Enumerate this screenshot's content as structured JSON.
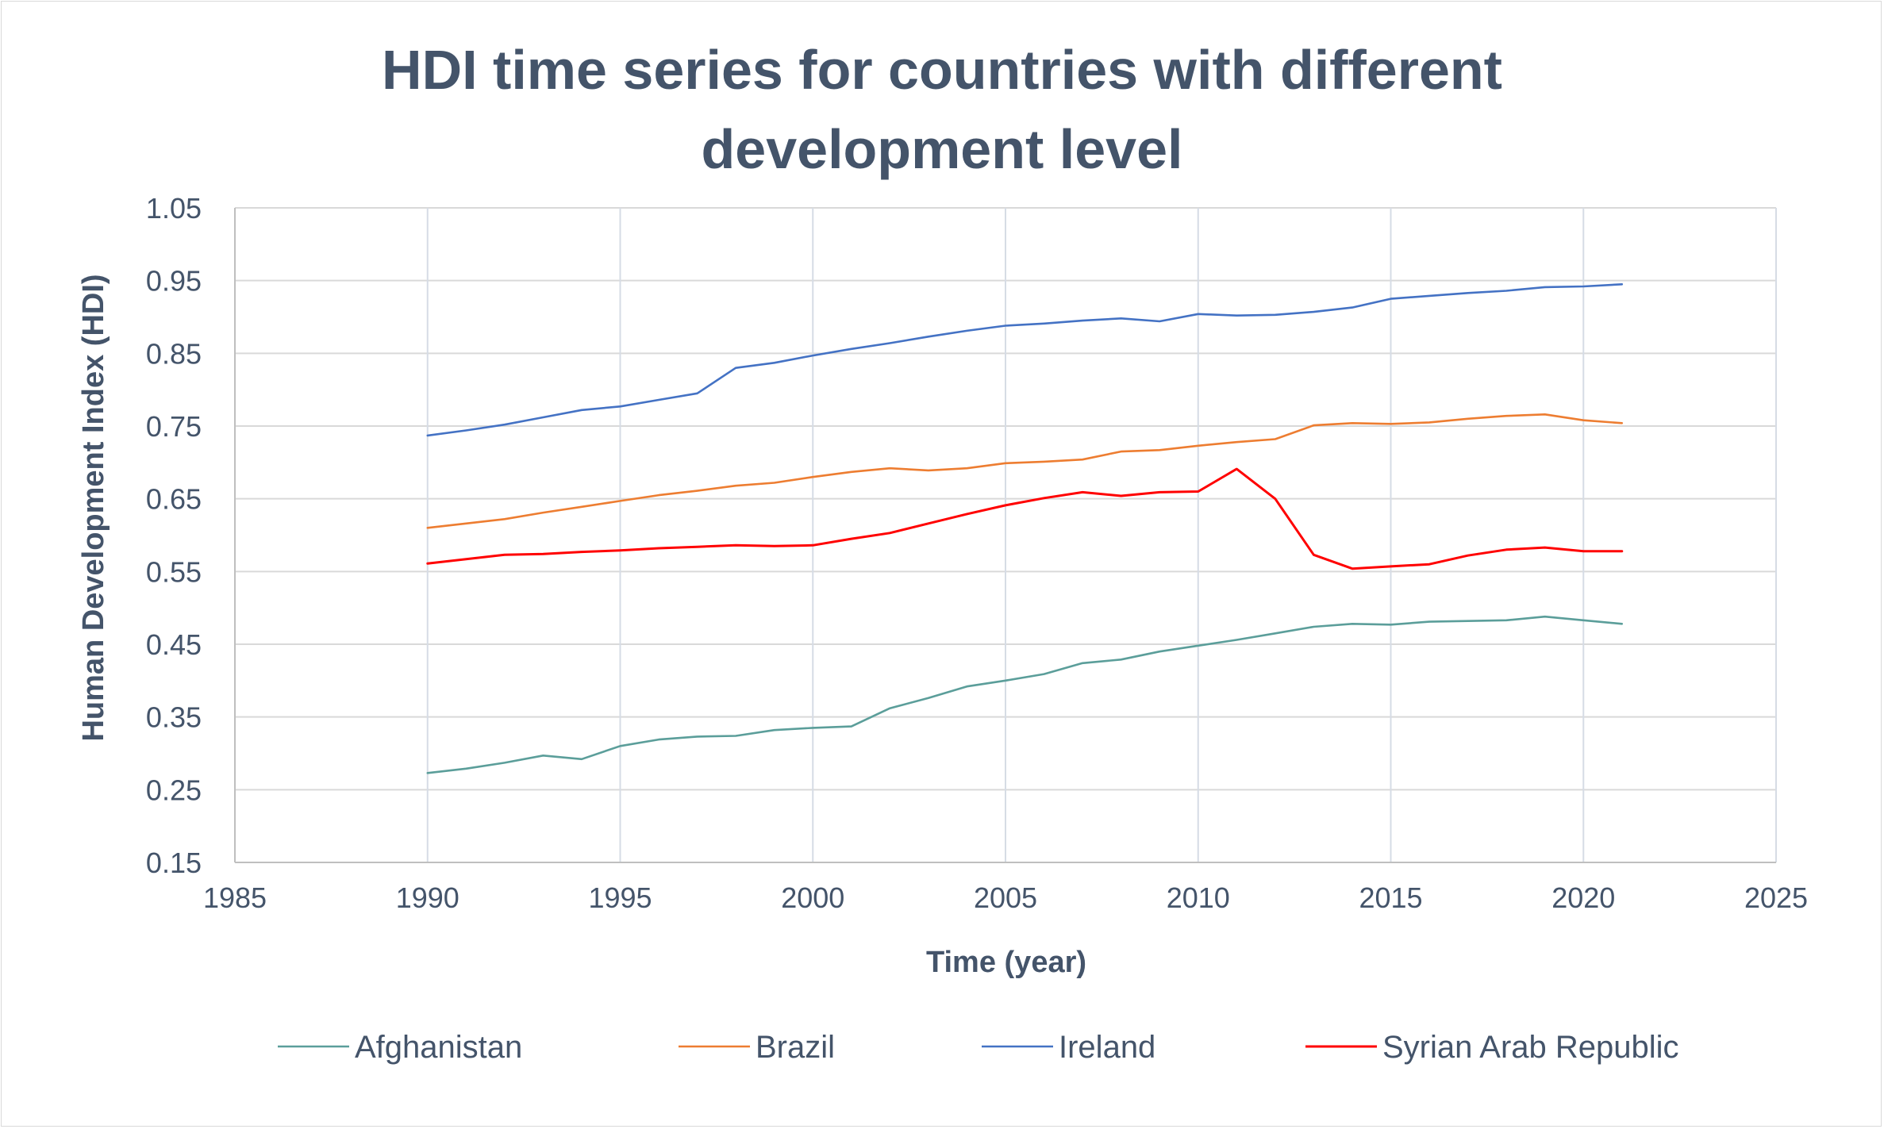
{
  "chart_data": {
    "type": "line",
    "title": "HDI time series for countries with different development level",
    "title_lines": [
      "HDI time series for countries with different",
      "development level"
    ],
    "xlabel": "Time (year)",
    "ylabel": "Human Development Index (HDI)",
    "xlim": [
      1985,
      2025
    ],
    "ylim": [
      0.15,
      1.05
    ],
    "x_ticks": [
      1985,
      1990,
      1995,
      2000,
      2005,
      2010,
      2015,
      2020,
      2025
    ],
    "y_ticks": [
      0.15,
      0.25,
      0.35,
      0.45,
      0.55,
      0.65,
      0.75,
      0.85,
      0.95,
      1.05
    ],
    "y_tick_labels": [
      "0.15",
      "0.25",
      "0.35",
      "0.45",
      "0.55",
      "0.65",
      "0.75",
      "0.85",
      "0.95",
      "1.05"
    ],
    "grid": true,
    "legend_position": "bottom",
    "x": [
      1990,
      1991,
      1992,
      1993,
      1994,
      1995,
      1996,
      1997,
      1998,
      1999,
      2000,
      2001,
      2002,
      2003,
      2004,
      2005,
      2006,
      2007,
      2008,
      2009,
      2010,
      2011,
      2012,
      2013,
      2014,
      2015,
      2016,
      2017,
      2018,
      2019,
      2020,
      2021
    ],
    "series": [
      {
        "name": "Afghanistan",
        "color": "#5b9e9a",
        "values": [
          0.273,
          0.279,
          0.287,
          0.297,
          0.292,
          0.31,
          0.319,
          0.323,
          0.324,
          0.332,
          0.335,
          0.337,
          0.362,
          0.376,
          0.392,
          0.4,
          0.409,
          0.424,
          0.429,
          0.44,
          0.448,
          0.456,
          0.465,
          0.474,
          0.478,
          0.477,
          0.481,
          0.482,
          0.483,
          0.488,
          0.483,
          0.478
        ]
      },
      {
        "name": "Brazil",
        "color": "#ed7d31",
        "values": [
          0.61,
          0.616,
          0.622,
          0.631,
          0.639,
          0.647,
          0.655,
          0.661,
          0.668,
          0.672,
          0.68,
          0.687,
          0.692,
          0.689,
          0.692,
          0.699,
          0.701,
          0.704,
          0.715,
          0.717,
          0.723,
          0.728,
          0.732,
          0.751,
          0.754,
          0.753,
          0.755,
          0.76,
          0.764,
          0.766,
          0.758,
          0.754
        ]
      },
      {
        "name": "Ireland",
        "color": "#4472c4",
        "values": [
          0.737,
          0.744,
          0.752,
          0.762,
          0.772,
          0.777,
          0.786,
          0.795,
          0.83,
          0.837,
          0.847,
          0.856,
          0.864,
          0.873,
          0.881,
          0.888,
          0.891,
          0.895,
          0.898,
          0.894,
          0.904,
          0.902,
          0.903,
          0.907,
          0.913,
          0.925,
          0.929,
          0.933,
          0.936,
          0.941,
          0.942,
          0.945
        ]
      },
      {
        "name": "Syrian Arab Republic",
        "color": "#ff0000",
        "values": [
          0.561,
          0.567,
          0.573,
          0.574,
          0.577,
          0.579,
          0.582,
          0.584,
          0.586,
          0.585,
          0.586,
          0.595,
          0.603,
          0.616,
          0.629,
          0.641,
          0.651,
          0.659,
          0.654,
          0.659,
          0.66,
          0.691,
          0.65,
          0.573,
          0.554,
          0.557,
          0.56,
          0.572,
          0.58,
          0.583,
          0.578,
          0.578
        ]
      }
    ]
  }
}
